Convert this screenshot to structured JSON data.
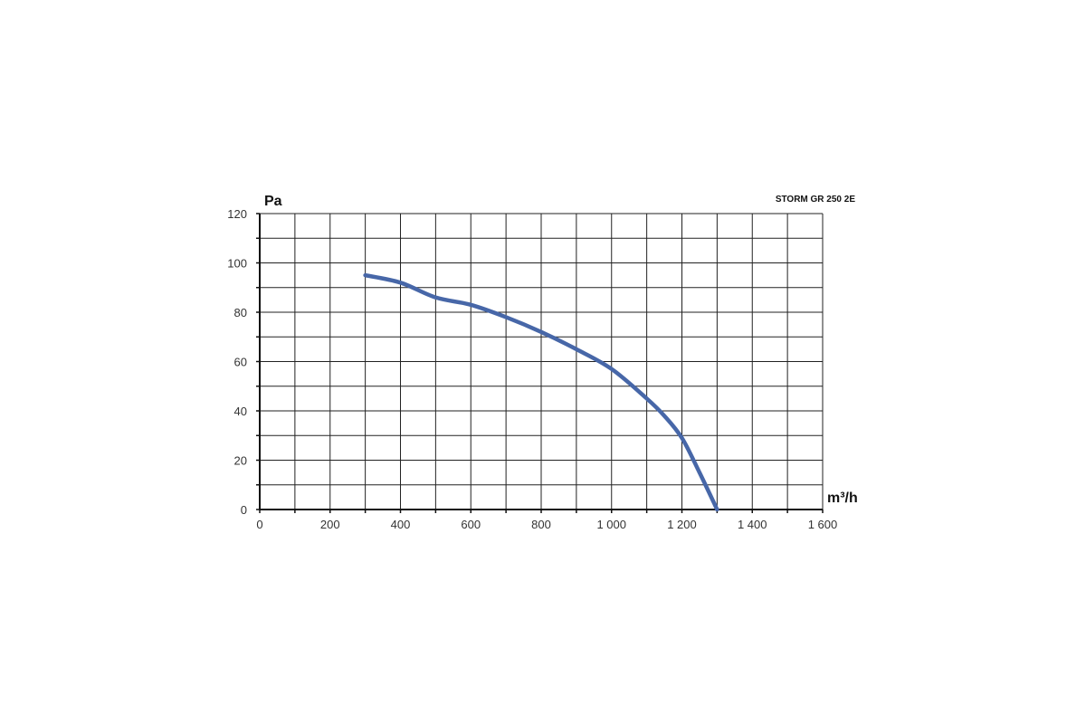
{
  "chart_data": {
    "type": "line",
    "title": "STORM GR 250 2E",
    "xlabel": "m³/h",
    "ylabel": "Pa",
    "xlim": [
      0,
      1600
    ],
    "ylim": [
      0,
      120
    ],
    "x_ticks": [
      0,
      200,
      400,
      600,
      800,
      1000,
      1200,
      1400,
      1600
    ],
    "x_tick_labels": [
      "0",
      "200",
      "400",
      "600",
      "800",
      "1 000",
      "1 200",
      "1 400",
      "1 600"
    ],
    "y_ticks": [
      0,
      20,
      40,
      60,
      80,
      100,
      120
    ],
    "y_tick_labels": [
      "0",
      "20",
      "40",
      "60",
      "80",
      "100",
      "120"
    ],
    "grid": true,
    "legend": "none",
    "series": [
      {
        "color": "#4767a8",
        "x": [
          300,
          400,
          500,
          600,
          700,
          800,
          900,
          1000,
          1100,
          1150,
          1200,
          1250,
          1300
        ],
        "y": [
          95,
          92,
          86,
          83,
          78,
          72,
          65,
          57,
          45,
          38,
          29,
          15,
          0
        ]
      }
    ]
  }
}
